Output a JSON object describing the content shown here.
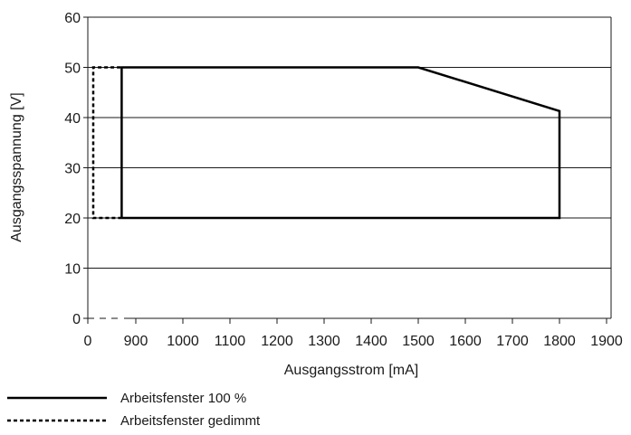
{
  "chart_data": {
    "type": "line",
    "xlabel": "Ausgangsstrom [mA]",
    "ylabel": "Ausgangsspannung [V]",
    "x_ticks": [
      "0",
      "900",
      "1000",
      "1100",
      "1200",
      "1300",
      "1400",
      "1500",
      "1600",
      "1700",
      "1800",
      "1900"
    ],
    "y_ticks": [
      0,
      10,
      20,
      30,
      40,
      50,
      60
    ],
    "y_tick_labels": [
      "0",
      "10",
      "20",
      "30",
      "40",
      "50",
      "60"
    ],
    "ylim": [
      0,
      60
    ],
    "x_axis_break": "between 0 and 900",
    "grid": "horizontal",
    "legend_position": "bottom-left",
    "series": [
      {
        "name": "Arbeitsfenster 100 %",
        "style": "solid",
        "color": "#000000",
        "points": [
          {
            "x": 870,
            "y": 20
          },
          {
            "x": 870,
            "y": 50
          },
          {
            "x": 1500,
            "y": 50
          },
          {
            "x": 1800,
            "y": 41.3
          },
          {
            "x": 1800,
            "y": 20
          },
          {
            "x": 870,
            "y": 20
          }
        ]
      },
      {
        "name": "Arbeitsfenster gedimmt",
        "style": "dashed",
        "color": "#000000",
        "points": [
          {
            "x": 870,
            "y": 20
          },
          {
            "x": 10,
            "y": 20
          },
          {
            "x": 10,
            "y": 50
          },
          {
            "x": 870,
            "y": 50
          }
        ]
      }
    ]
  }
}
